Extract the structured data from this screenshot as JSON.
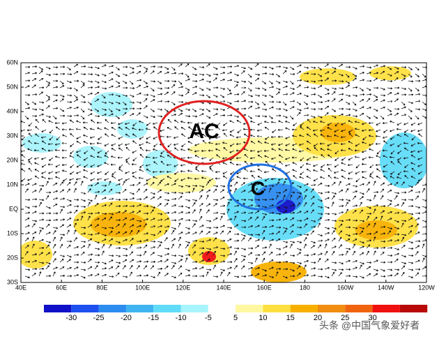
{
  "map": {
    "lat_labels": [
      "60N",
      "50N",
      "40N",
      "30N",
      "20N",
      "10N",
      "EQ",
      "10S",
      "20S",
      "30S"
    ],
    "lon_labels": [
      "40E",
      "60E",
      "80E",
      "100E",
      "120E",
      "140E",
      "160E",
      "180",
      "160W",
      "140W",
      "120W"
    ],
    "annotations": [
      "AC",
      "C"
    ]
  },
  "colorbar": {
    "labels": [
      "-30",
      "-25",
      "-20",
      "-15",
      "-10",
      "-5",
      "5",
      "10",
      "15",
      "20",
      "25",
      "30"
    ],
    "colors": [
      "#1010c8",
      "#1e50f0",
      "#2c8cf0",
      "#40b4f0",
      "#60dcf8",
      "#a8f4fc",
      "#ffffff",
      "#fff8a0",
      "#ffe040",
      "#f8b000",
      "#f08c10",
      "#f06410",
      "#f01010",
      "#b80808"
    ]
  },
  "watermark": "头条 @中国气象爱好者"
}
